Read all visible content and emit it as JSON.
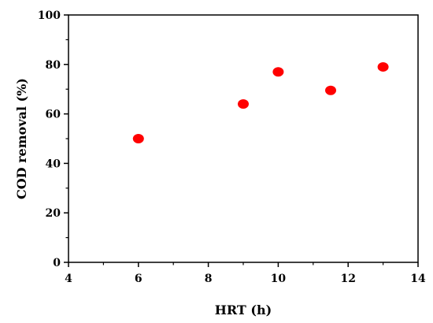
{
  "chart_data": {
    "type": "scatter",
    "title": "",
    "xlabel": "HRT (h)",
    "ylabel": "COD removal (%)",
    "xlim": [
      4,
      14
    ],
    "ylim": [
      0,
      100
    ],
    "xticks": [
      4,
      6,
      8,
      10,
      12,
      14
    ],
    "yticks": [
      0,
      20,
      40,
      60,
      80,
      100
    ],
    "x_minor_step": 1,
    "y_minor_step": 10,
    "grid": false,
    "marker_color": "#ff0000",
    "points": [
      {
        "x": 6,
        "y": 50
      },
      {
        "x": 9,
        "y": 64
      },
      {
        "x": 10,
        "y": 77
      },
      {
        "x": 11.5,
        "y": 69.5
      },
      {
        "x": 13,
        "y": 79
      }
    ]
  }
}
